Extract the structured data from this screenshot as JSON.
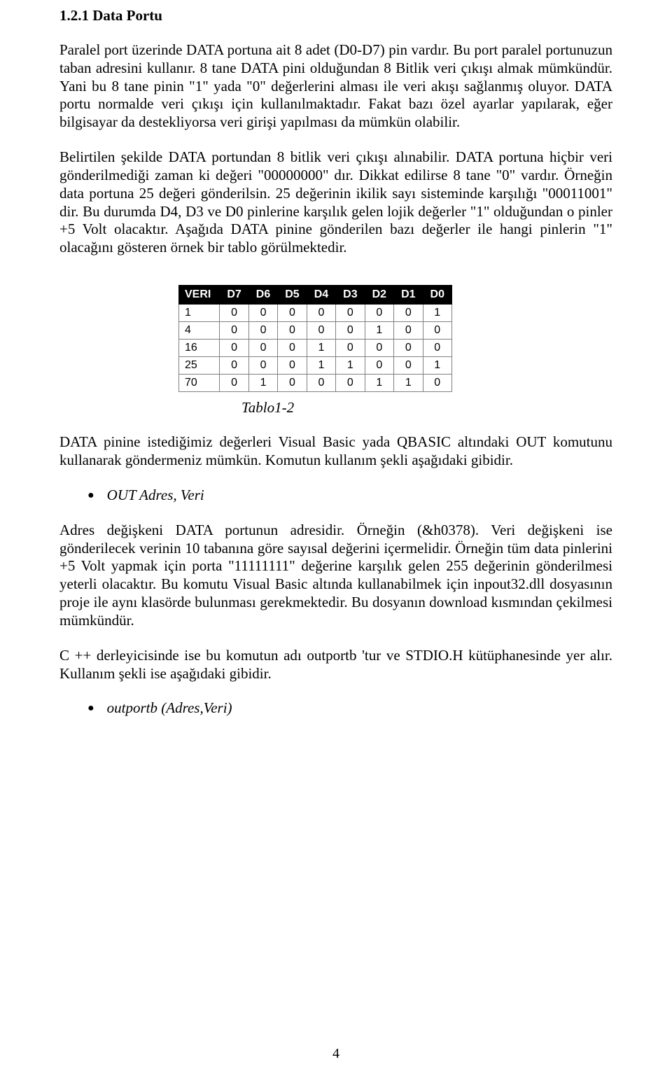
{
  "heading": "1.2.1 Data Portu",
  "para1": "Paralel port üzerinde DATA portuna ait 8 adet (D0-D7) pin vardır. Bu port paralel portunuzun taban adresini kullanır. 8 tane DATA pini olduğundan 8 Bitlik veri çıkışı almak mümkündür. Yani bu 8 tane pinin \"1\" yada \"0\" değerlerini alması ile veri akışı sağlanmış oluyor. DATA portu normalde veri çıkışı için kullanılmaktadır. Fakat bazı özel ayarlar yapılarak, eğer bilgisayar da destekliyorsa veri girişi yapılması da mümkün olabilir.",
  "para2": "Belirtilen şekilde DATA portundan 8 bitlik veri çıkışı alınabilir. DATA portuna hiçbir veri gönderilmediği zaman ki değeri \"00000000\" dır. Dikkat edilirse 8 tane \"0\" vardır. Örneğin data portuna 25 değeri gönderilsin. 25 değerinin ikilik sayı sisteminde karşılığı \"00011001\" dir. Bu durumda D4, D3 ve D0 pinlerine karşılık gelen lojik değerler \"1\" olduğundan o pinler +5 Volt olacaktır. Aşağıda DATA pinine gönderilen bazı değerler ile hangi pinlerin \"1\" olacağını gösteren örnek bir tablo görülmektedir.",
  "table": {
    "headers": [
      "VERI",
      "D7",
      "D6",
      "D5",
      "D4",
      "D3",
      "D2",
      "D1",
      "D0"
    ],
    "rows": [
      [
        "1",
        "0",
        "0",
        "0",
        "0",
        "0",
        "0",
        "0",
        "1"
      ],
      [
        "4",
        "0",
        "0",
        "0",
        "0",
        "0",
        "1",
        "0",
        "0"
      ],
      [
        "16",
        "0",
        "0",
        "0",
        "1",
        "0",
        "0",
        "0",
        "0"
      ],
      [
        "25",
        "0",
        "0",
        "0",
        "1",
        "1",
        "0",
        "0",
        "1"
      ],
      [
        "70",
        "0",
        "1",
        "0",
        "0",
        "0",
        "1",
        "1",
        "0"
      ]
    ]
  },
  "caption": "Tablo1-2",
  "para3": "DATA pinine istediğimiz değerleri Visual Basic yada QBASIC altındaki OUT komutunu kullanarak göndermeniz mümkün. Komutun kullanım şekli aşağıdaki gibidir.",
  "bullet1": "OUT Adres, Veri",
  "para4": "Adres değişkeni DATA portunun adresidir. Örneğin (&h0378). Veri değişkeni ise gönderilecek verinin 10 tabanına göre sayısal değerini içermelidir. Örneğin tüm data pinlerini +5 Volt yapmak için porta \"11111111\" değerine karşılık gelen 255 değerinin gönderilmesi yeterli olacaktır. Bu komutu Visual Basic altında kullanabilmek için inpout32.dll dosyasının proje ile aynı klasörde bulunması gerekmektedir. Bu dosyanın download kısmından çekilmesi mümkündür.",
  "para5": "C ++ derleyicisinde ise bu komutun adı outportb 'tur ve STDIO.H kütüphanesinde yer alır. Kullanım şekli ise aşağıdaki gibidir.",
  "bullet2": "outportb (Adres,Veri)",
  "pageNum": "4"
}
